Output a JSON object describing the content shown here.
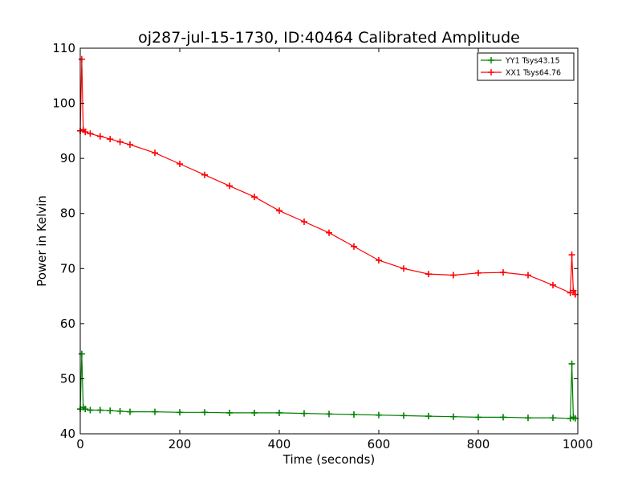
{
  "chart_data": {
    "type": "line",
    "title": "oj287-jul-15-1730, ID:40464 Calibrated Amplitude",
    "xlabel": "Time (seconds)",
    "ylabel": "Power in Kelvin",
    "xlim": [
      0,
      1000
    ],
    "ylim": [
      40,
      110
    ],
    "xticks": [
      0,
      200,
      400,
      600,
      800,
      1000
    ],
    "yticks": [
      40,
      50,
      60,
      70,
      80,
      90,
      100,
      110
    ],
    "grid": false,
    "legend_position": "top-right",
    "marker": "plus",
    "series": [
      {
        "name": "YY1 Tsys43.15",
        "color": "#008000",
        "x": [
          0,
          3,
          6,
          10,
          20,
          40,
          60,
          80,
          100,
          150,
          200,
          250,
          300,
          350,
          400,
          450,
          500,
          550,
          600,
          650,
          700,
          750,
          800,
          850,
          900,
          950,
          985,
          988,
          991,
          995
        ],
        "y": [
          44.5,
          54.5,
          44.8,
          44.5,
          44.3,
          44.3,
          44.2,
          44.1,
          44.0,
          44.0,
          43.9,
          43.9,
          43.8,
          43.8,
          43.8,
          43.7,
          43.6,
          43.5,
          43.4,
          43.3,
          43.2,
          43.1,
          43.0,
          43.0,
          42.9,
          42.9,
          42.8,
          52.7,
          43.0,
          42.8
        ]
      },
      {
        "name": "XX1 Tsys64.76",
        "color": "#ff0000",
        "x": [
          0,
          3,
          6,
          10,
          20,
          40,
          60,
          80,
          100,
          150,
          200,
          250,
          300,
          350,
          400,
          450,
          500,
          550,
          600,
          650,
          700,
          750,
          800,
          850,
          900,
          950,
          985,
          988,
          991,
          995
        ],
        "y": [
          95,
          108,
          95.2,
          94.8,
          94.5,
          94.0,
          93.5,
          93.0,
          92.5,
          91.0,
          89.0,
          87.0,
          85.0,
          83.0,
          80.5,
          78.5,
          76.5,
          74.0,
          71.5,
          70.0,
          69.0,
          68.8,
          69.2,
          69.3,
          68.8,
          67.0,
          65.6,
          72.5,
          66.0,
          65.3
        ]
      }
    ]
  }
}
